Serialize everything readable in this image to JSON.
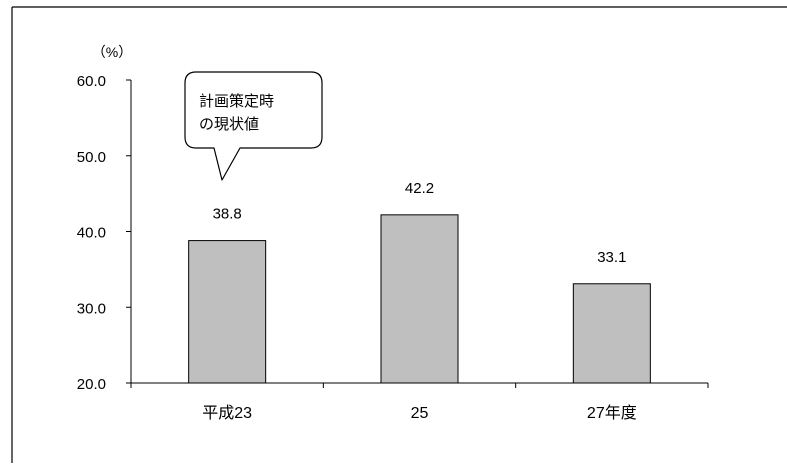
{
  "chart_data": {
    "type": "bar",
    "categories": [
      "平成23",
      "25",
      "27年度"
    ],
    "values": [
      38.8,
      42.2,
      33.1
    ],
    "value_labels": [
      "38.8",
      "42.2",
      "33.1"
    ],
    "ylim": [
      20.0,
      60.0
    ],
    "y_ticks": [
      "20.0",
      "30.0",
      "40.0",
      "50.0",
      "60.0"
    ],
    "y_unit": "（%）",
    "xlabel": "",
    "ylabel": "",
    "title": "",
    "grid": false,
    "bar_color": "#bfbfbf",
    "bar_edge_color": "#000000",
    "callout": {
      "category_index": 0,
      "lines": [
        "計画策定時",
        "の現状値"
      ]
    }
  }
}
